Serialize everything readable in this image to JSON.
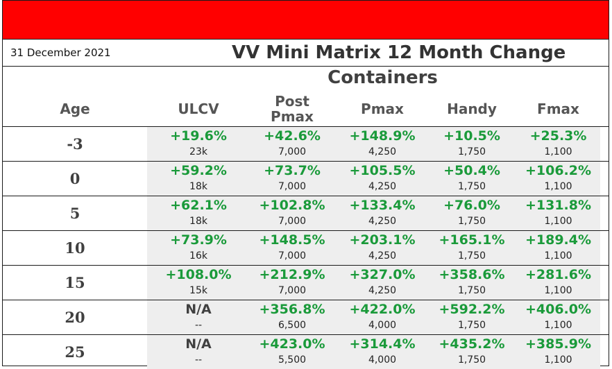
{
  "date": "31 December 2021",
  "title": "VV Mini Matrix 12 Month Change",
  "subtitle": "Containers",
  "headers": {
    "age": "Age",
    "columns": [
      "ULCV",
      "Post\nPmax",
      "Pmax",
      "Handy",
      "Fmax"
    ]
  },
  "rows": [
    {
      "age": "-3",
      "cells": [
        {
          "pct": "+19.6%",
          "size": "23k"
        },
        {
          "pct": "+42.6%",
          "size": "7,000"
        },
        {
          "pct": "+148.9%",
          "size": "4,250"
        },
        {
          "pct": "+10.5%",
          "size": "1,750"
        },
        {
          "pct": "+25.3%",
          "size": "1,100"
        }
      ]
    },
    {
      "age": "0",
      "cells": [
        {
          "pct": "+59.2%",
          "size": "18k"
        },
        {
          "pct": "+73.7%",
          "size": "7,000"
        },
        {
          "pct": "+105.5%",
          "size": "4,250"
        },
        {
          "pct": "+50.4%",
          "size": "1,750"
        },
        {
          "pct": "+106.2%",
          "size": "1,100"
        }
      ]
    },
    {
      "age": "5",
      "cells": [
        {
          "pct": "+62.1%",
          "size": "18k"
        },
        {
          "pct": "+102.8%",
          "size": "7,000"
        },
        {
          "pct": "+133.4%",
          "size": "4,250"
        },
        {
          "pct": "+76.0%",
          "size": "1,750"
        },
        {
          "pct": "+131.8%",
          "size": "1,100"
        }
      ]
    },
    {
      "age": "10",
      "cells": [
        {
          "pct": "+73.9%",
          "size": "16k"
        },
        {
          "pct": "+148.5%",
          "size": "7,000"
        },
        {
          "pct": "+203.1%",
          "size": "4,250"
        },
        {
          "pct": "+165.1%",
          "size": "1,750"
        },
        {
          "pct": "+189.4%",
          "size": "1,100"
        }
      ]
    },
    {
      "age": "15",
      "cells": [
        {
          "pct": "+108.0%",
          "size": "15k"
        },
        {
          "pct": "+212.9%",
          "size": "7,000"
        },
        {
          "pct": "+327.0%",
          "size": "4,250"
        },
        {
          "pct": "+358.6%",
          "size": "1,750"
        },
        {
          "pct": "+281.6%",
          "size": "1,100"
        }
      ]
    },
    {
      "age": "20",
      "cells": [
        {
          "pct": "N/A",
          "size": "--"
        },
        {
          "pct": "+356.8%",
          "size": "6,500"
        },
        {
          "pct": "+422.0%",
          "size": "4,000"
        },
        {
          "pct": "+592.2%",
          "size": "1,750"
        },
        {
          "pct": "+406.0%",
          "size": "1,100"
        }
      ]
    },
    {
      "age": "25",
      "cells": [
        {
          "pct": "N/A",
          "size": "--"
        },
        {
          "pct": "+423.0%",
          "size": "5,500"
        },
        {
          "pct": "+314.4%",
          "size": "4,000"
        },
        {
          "pct": "+435.2%",
          "size": "1,750"
        },
        {
          "pct": "+385.9%",
          "size": "1,100"
        }
      ]
    }
  ],
  "colors": {
    "header_bar": "#ff0000",
    "positive": "#1a9a3a",
    "shade": "#eeeeee",
    "text_dark": "#404040"
  }
}
